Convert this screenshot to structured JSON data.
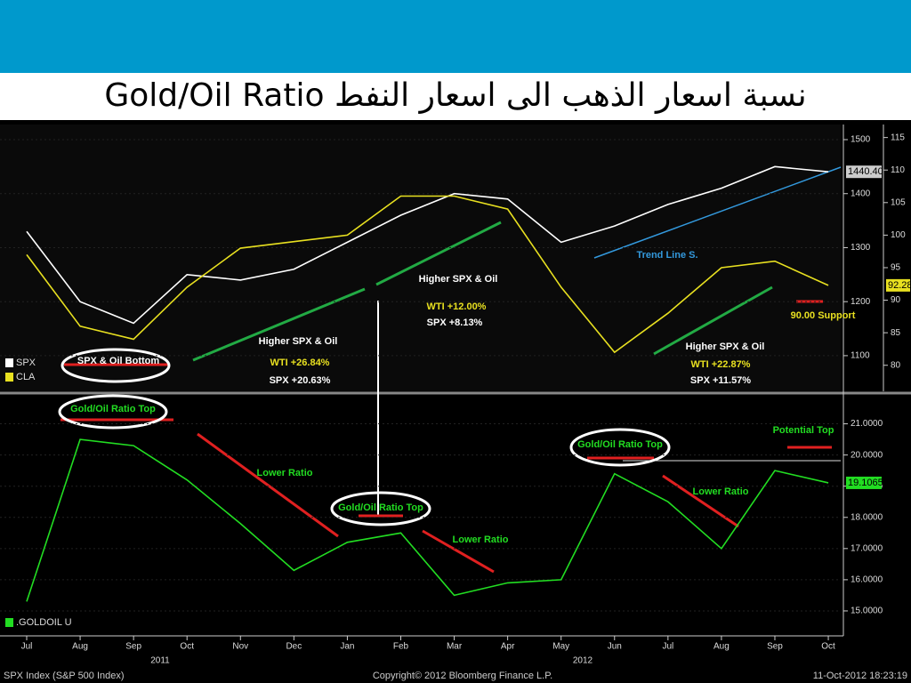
{
  "title": "Gold/Oil Ratio نسبة اسعار الذهب الى اسعار النفط",
  "footer": {
    "left": "SPX Index (S&P 500 Index)",
    "center": "Copyright© 2012 Bloomberg Finance L.P.",
    "right": "11-Oct-2012 18:23:19"
  },
  "chart_data": [
    {
      "type": "line",
      "ylim": [
        1034,
        1528
      ],
      "yticks": [
        1100,
        1200,
        1300,
        1400,
        1500
      ],
      "y2lim": [
        76,
        117
      ],
      "y2ticks": [
        80,
        85,
        90,
        95,
        100,
        105,
        110,
        115
      ],
      "series": [
        {
          "name": "SPX",
          "color": "#ffffff",
          "values": [
            1330,
            1200,
            1160,
            1250,
            1240,
            1260,
            1310,
            1360,
            1400,
            1390,
            1310,
            1340,
            1380,
            1410,
            1450,
            1440.4
          ],
          "value_labels": [
            null,
            null,
            null,
            null,
            null,
            null,
            null,
            null,
            null,
            null,
            null,
            null,
            null,
            null,
            null,
            "1440.40"
          ]
        },
        {
          "name": "CLA",
          "color": "#e8e020",
          "axis": "y2",
          "values": [
            97,
            86,
            84,
            92,
            98,
            99,
            100,
            106,
            106,
            104,
            92,
            82,
            88,
            95,
            96,
            92.28
          ]
        }
      ],
      "annotations": [
        "SPX & Oil Bottom",
        "Higher SPX & Oil",
        "WTI +26.84%",
        "SPX +20.63%",
        "Higher SPX & Oil",
        "WTI +12.00%",
        "SPX +8.13%",
        "Trend Line S.",
        "Higher SPX & Oil",
        "WTI +22.87%",
        "SPX +11.57%",
        "90.00 Support"
      ]
    },
    {
      "type": "line",
      "categories": [
        "Jul",
        "Aug",
        "Sep",
        "Oct",
        "Nov",
        "Dec",
        "Jan",
        "Feb",
        "Mar",
        "Apr",
        "May",
        "Jun",
        "Jul",
        "Aug",
        "Sep",
        "Oct"
      ],
      "year_labels": [
        "2011",
        "2012"
      ],
      "ylim": [
        14.2,
        21.9
      ],
      "yticks": [
        {
          "value": 15,
          "label": "15.0000"
        },
        {
          "value": 16,
          "label": "16.0000"
        },
        {
          "value": 17,
          "label": "17.0000"
        },
        {
          "value": 18,
          "label": "18.0000"
        },
        {
          "value": 19,
          "label": "19.0000"
        },
        {
          "value": 20,
          "label": "20.0000"
        },
        {
          "value": 21,
          "label": "21.0000"
        }
      ],
      "series": [
        {
          "name": ".GOLDOIL U",
          "color": "#22dd22",
          "values": [
            15.3,
            20.5,
            20.3,
            19.2,
            17.8,
            16.3,
            17.2,
            17.5,
            15.5,
            15.9,
            16.0,
            19.4,
            18.5,
            17.0,
            19.5,
            19.1065
          ]
        }
      ],
      "annotations": [
        "Gold/Oil Ratio Top",
        "Lower Ratio",
        "Gold/Oil Ratio Top",
        "Lower Ratio",
        "Gold/Oil Ratio Top",
        "Lower Ratio",
        "Potential Top"
      ]
    }
  ]
}
